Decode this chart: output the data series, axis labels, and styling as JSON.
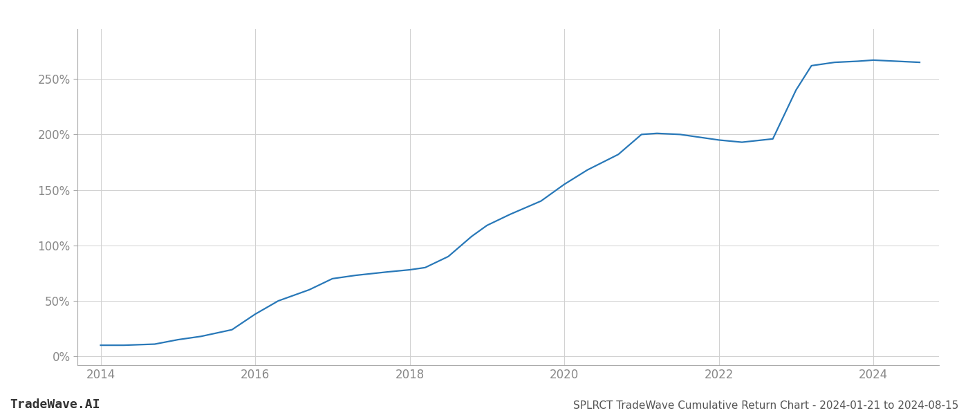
{
  "x_values": [
    2014.0,
    2014.3,
    2014.7,
    2015.0,
    2015.3,
    2015.7,
    2016.0,
    2016.3,
    2016.7,
    2017.0,
    2017.3,
    2017.7,
    2018.0,
    2018.2,
    2018.5,
    2018.8,
    2019.0,
    2019.3,
    2019.7,
    2020.0,
    2020.3,
    2020.7,
    2021.0,
    2021.2,
    2021.5,
    2021.8,
    2022.0,
    2022.3,
    2022.7,
    2023.0,
    2023.2,
    2023.5,
    2023.8,
    2024.0,
    2024.3,
    2024.6
  ],
  "y_values": [
    10,
    10,
    11,
    15,
    18,
    24,
    38,
    50,
    60,
    70,
    73,
    76,
    78,
    80,
    90,
    108,
    118,
    128,
    140,
    155,
    168,
    182,
    200,
    201,
    200,
    197,
    195,
    193,
    196,
    240,
    262,
    265,
    266,
    267,
    266,
    265
  ],
  "line_color": "#2878b8",
  "line_width": 1.6,
  "title": "SPLRCT TradeWave Cumulative Return Chart - 2024-01-21 to 2024-08-15",
  "watermark": "TradeWave.AI",
  "background_color": "#ffffff",
  "grid_color": "#d0d0d0",
  "xlim": [
    2013.7,
    2024.85
  ],
  "ylim": [
    -8,
    295
  ],
  "yticks": [
    0,
    50,
    100,
    150,
    200,
    250
  ],
  "ytick_labels": [
    "0%",
    "50%",
    "100%",
    "150%",
    "200%",
    "250%"
  ],
  "xticks": [
    2014,
    2016,
    2018,
    2020,
    2022,
    2024
  ],
  "xtick_labels": [
    "2014",
    "2016",
    "2018",
    "2020",
    "2022",
    "2024"
  ],
  "title_fontsize": 11,
  "tick_fontsize": 12,
  "watermark_fontsize": 13
}
